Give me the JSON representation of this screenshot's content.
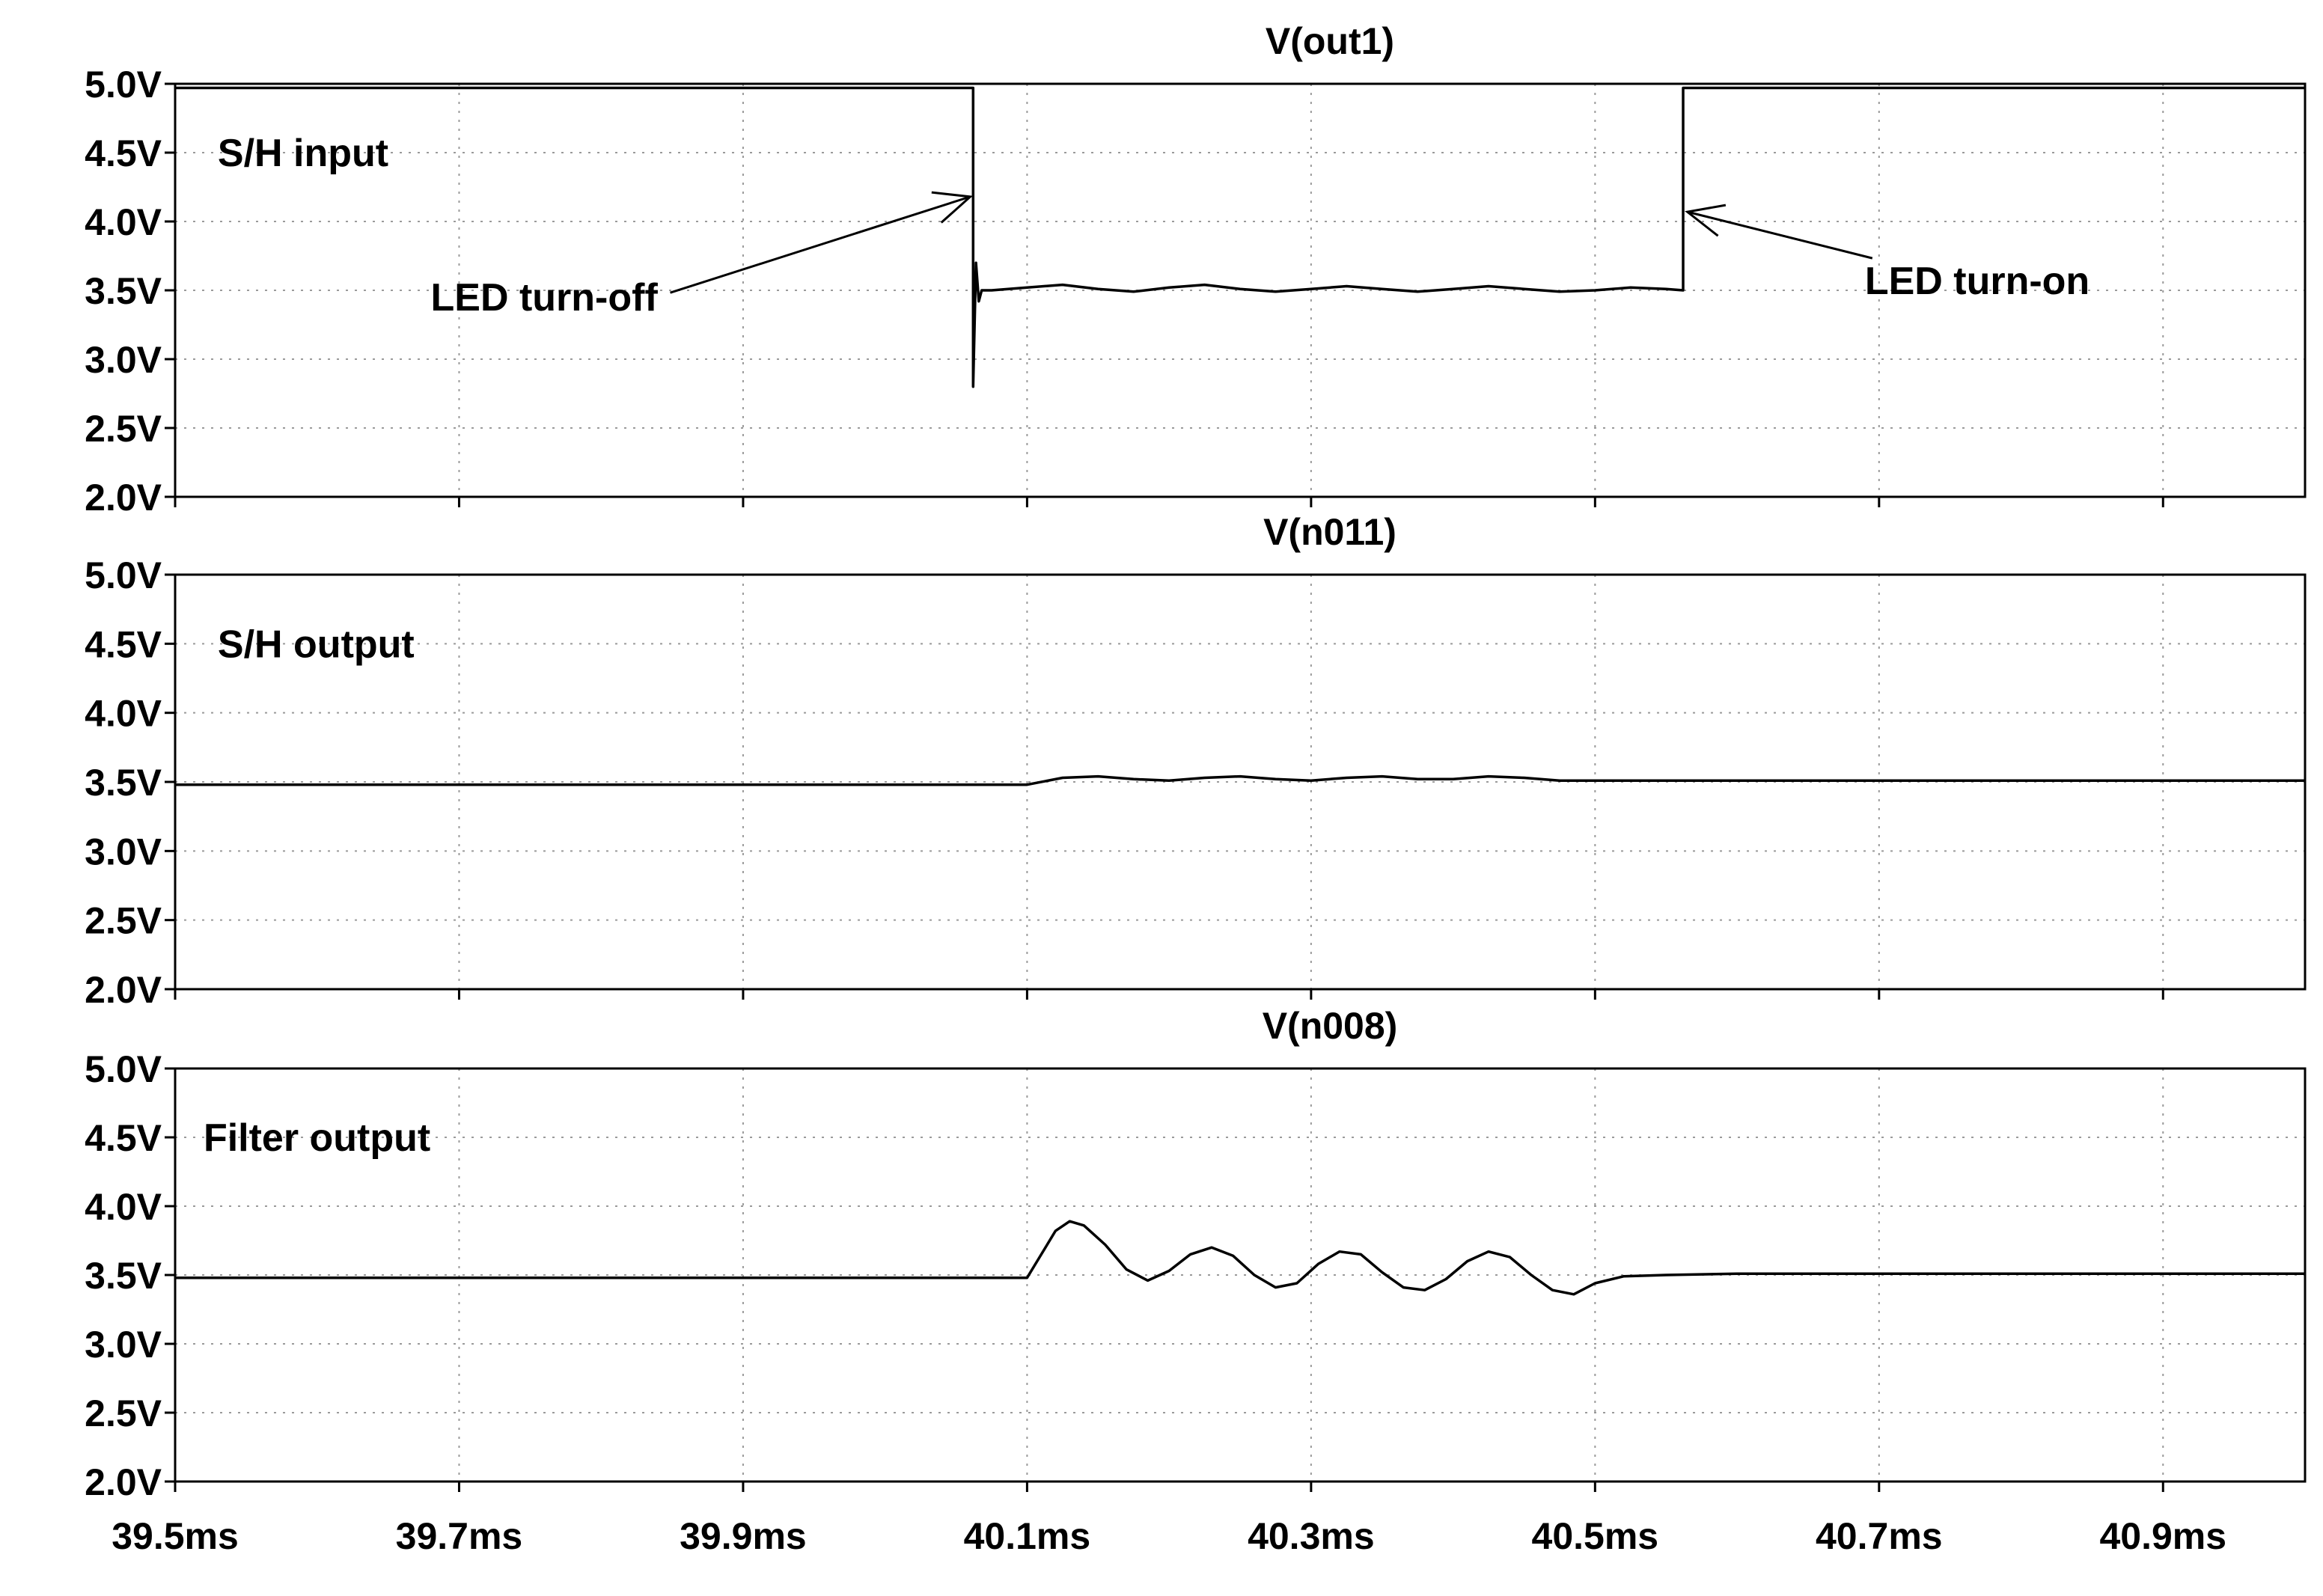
{
  "colors": {
    "background": "#ffffff",
    "trace": "#000000",
    "grid": "#9a9a9a",
    "frame": "#000000"
  },
  "chart_data": [
    {
      "type": "line",
      "title": "V(out1)",
      "xlim": [
        39.5,
        41.0
      ],
      "ylim": [
        2.0,
        5.0
      ],
      "grid": true,
      "x_ticks": [
        39.5,
        39.7,
        39.9,
        40.1,
        40.3,
        40.5,
        40.7,
        40.9
      ],
      "y_ticks": [
        2.0,
        2.5,
        3.0,
        3.5,
        4.0,
        4.5,
        5.0
      ],
      "y_tick_labels": [
        "2.0V",
        "2.5V",
        "3.0V",
        "3.5V",
        "4.0V",
        "4.5V",
        "5.0V"
      ],
      "annotations": [
        {
          "name": "label-sh-input",
          "text": "S/H input",
          "x": 39.53,
          "y": 4.5
        },
        {
          "name": "label-led-turn-off",
          "text": "LED turn-off",
          "x": 39.68,
          "y": 3.45,
          "arrow_to": [
            40.06,
            4.18
          ]
        },
        {
          "name": "label-led-turn-on",
          "text": "LED turn-on",
          "x": 40.69,
          "y": 3.57,
          "arrow_to": [
            40.565,
            4.07
          ]
        }
      ],
      "series": [
        {
          "x": [
            39.5,
            40.062,
            40.062,
            40.064,
            40.066,
            40.068,
            40.075,
            40.1,
            40.125,
            40.15,
            40.175,
            40.2,
            40.225,
            40.25,
            40.275,
            40.3,
            40.325,
            40.35,
            40.375,
            40.4,
            40.425,
            40.45,
            40.475,
            40.5,
            40.525,
            40.55,
            40.562,
            40.562,
            41.0
          ],
          "y": [
            4.97,
            4.97,
            2.8,
            3.7,
            3.42,
            3.5,
            3.5,
            3.52,
            3.54,
            3.51,
            3.49,
            3.52,
            3.54,
            3.51,
            3.49,
            3.51,
            3.53,
            3.51,
            3.49,
            3.51,
            3.53,
            3.51,
            3.49,
            3.5,
            3.52,
            3.51,
            3.5,
            4.97,
            4.97
          ]
        }
      ]
    },
    {
      "type": "line",
      "title": "V(n011)",
      "xlim": [
        39.5,
        41.0
      ],
      "ylim": [
        2.0,
        5.0
      ],
      "grid": true,
      "x_ticks": [
        39.5,
        39.7,
        39.9,
        40.1,
        40.3,
        40.5,
        40.7,
        40.9
      ],
      "y_ticks": [
        2.0,
        2.5,
        3.0,
        3.5,
        4.0,
        4.5,
        5.0
      ],
      "y_tick_labels": [
        "2.0V",
        "2.5V",
        "3.0V",
        "3.5V",
        "4.0V",
        "4.5V",
        "5.0V"
      ],
      "annotations": [
        {
          "name": "label-sh-output",
          "text": "S/H output",
          "x": 39.53,
          "y": 4.5
        }
      ],
      "series": [
        {
          "x": [
            39.5,
            40.1,
            40.125,
            40.15,
            40.175,
            40.2,
            40.225,
            40.25,
            40.275,
            40.3,
            40.325,
            40.35,
            40.375,
            40.4,
            40.425,
            40.45,
            40.475,
            40.5,
            40.6,
            41.0
          ],
          "y": [
            3.48,
            3.48,
            3.53,
            3.54,
            3.52,
            3.51,
            3.53,
            3.54,
            3.52,
            3.51,
            3.53,
            3.54,
            3.52,
            3.52,
            3.54,
            3.53,
            3.51,
            3.51,
            3.51,
            3.51
          ]
        }
      ]
    },
    {
      "type": "line",
      "title": "V(n008)",
      "xlim": [
        39.5,
        41.0
      ],
      "ylim": [
        2.0,
        5.0
      ],
      "grid": true,
      "x_ticks": [
        39.5,
        39.7,
        39.9,
        40.1,
        40.3,
        40.5,
        40.7,
        40.9
      ],
      "y_ticks": [
        2.0,
        2.5,
        3.0,
        3.5,
        4.0,
        4.5,
        5.0
      ],
      "y_tick_labels": [
        "2.0V",
        "2.5V",
        "3.0V",
        "3.5V",
        "4.0V",
        "4.5V",
        "5.0V"
      ],
      "x_tick_labels": [
        "39.5ms",
        "39.7ms",
        "39.9ms",
        "40.1ms",
        "40.3ms",
        "40.5ms",
        "40.7ms",
        "40.9ms"
      ],
      "annotations": [
        {
          "name": "label-filter-output",
          "text": "Filter output",
          "x": 39.52,
          "y": 4.5
        }
      ],
      "series": [
        {
          "x": [
            39.5,
            40.1,
            40.11,
            40.12,
            40.13,
            40.14,
            40.155,
            40.17,
            40.185,
            40.2,
            40.215,
            40.23,
            40.245,
            40.26,
            40.275,
            40.29,
            40.305,
            40.32,
            40.335,
            40.35,
            40.365,
            40.38,
            40.395,
            40.41,
            40.425,
            40.44,
            40.455,
            40.47,
            40.485,
            40.5,
            40.52,
            40.55,
            40.6,
            41.0
          ],
          "y": [
            3.48,
            3.48,
            3.65,
            3.82,
            3.89,
            3.86,
            3.72,
            3.54,
            3.46,
            3.53,
            3.65,
            3.7,
            3.64,
            3.5,
            3.41,
            3.44,
            3.58,
            3.67,
            3.65,
            3.52,
            3.41,
            3.39,
            3.47,
            3.6,
            3.67,
            3.63,
            3.5,
            3.39,
            3.36,
            3.44,
            3.49,
            3.5,
            3.51,
            3.51
          ]
        }
      ]
    }
  ]
}
